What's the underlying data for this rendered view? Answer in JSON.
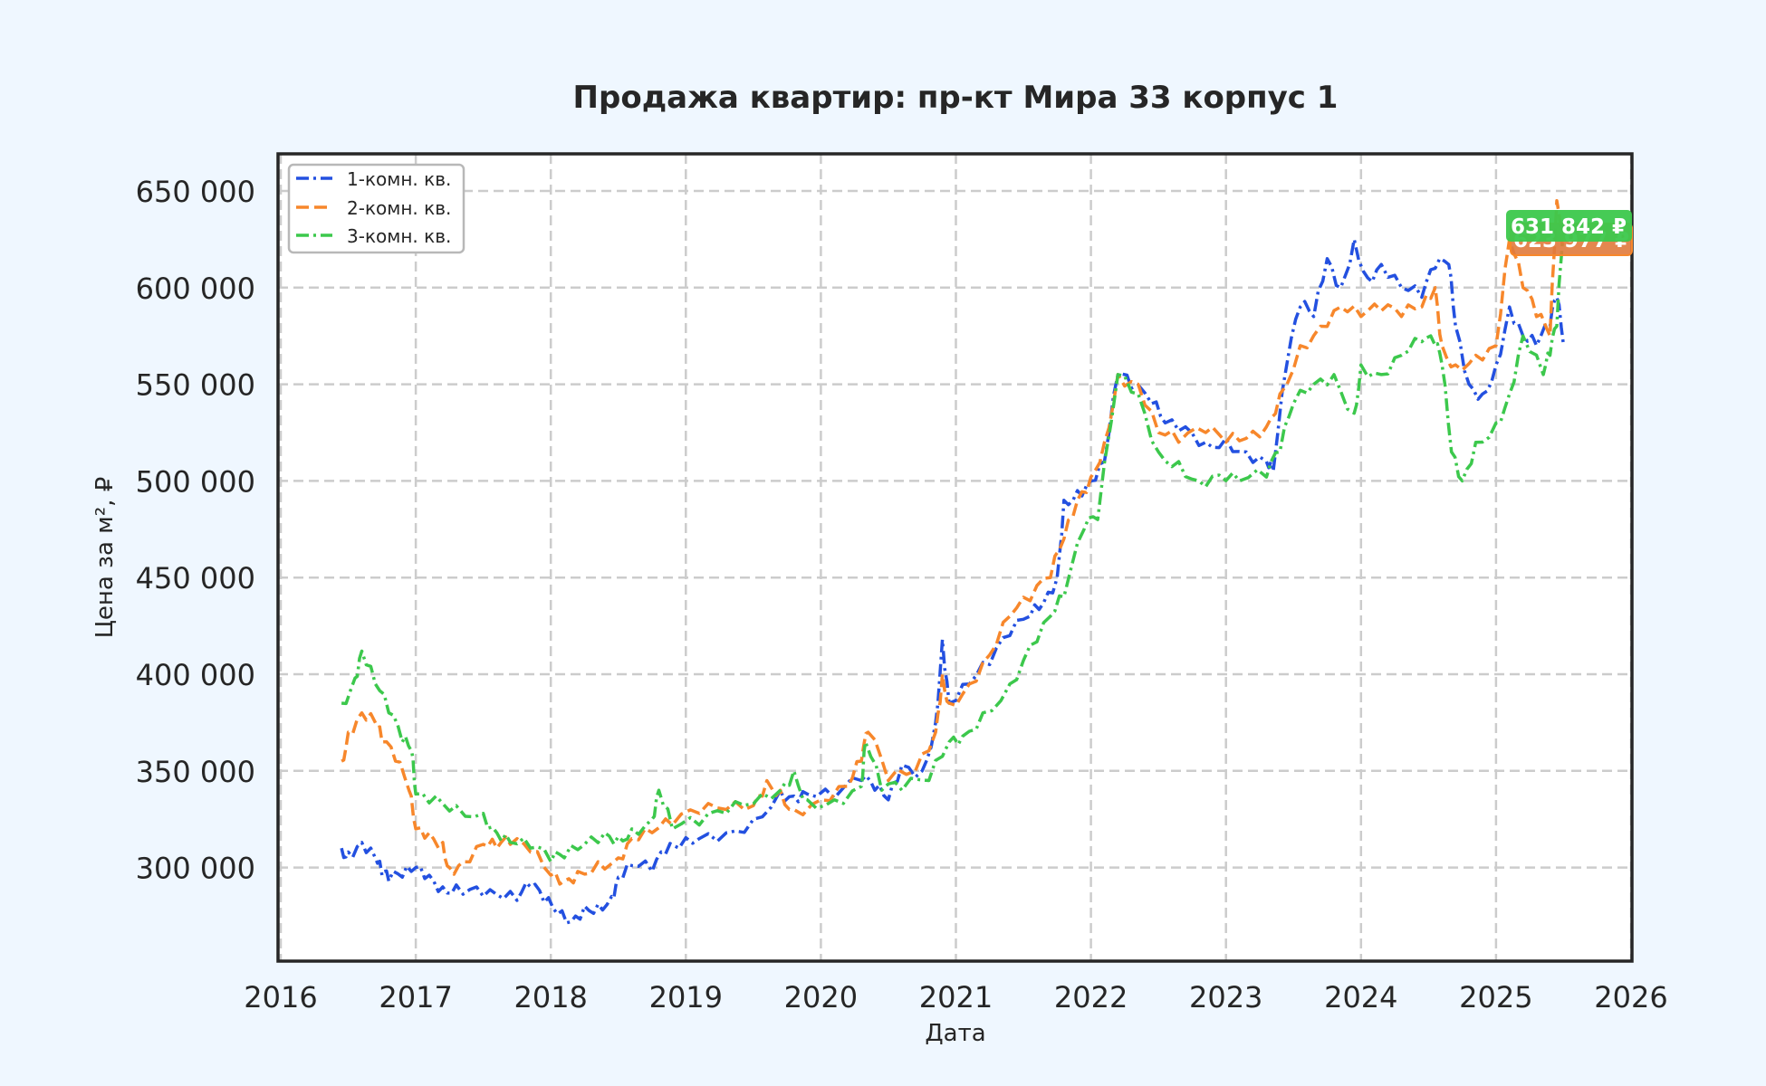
{
  "chart_data": {
    "type": "line",
    "title": "Продажа квартир: пр-кт Мира 33 корпус 1",
    "xlabel": "Дата",
    "ylabel": "Цена за м², ₽",
    "xlim": [
      2016,
      2026
    ],
    "ylim": [
      252000,
      660000
    ],
    "x_ticks": [
      "2016",
      "2017",
      "2018",
      "2019",
      "2020",
      "2021",
      "2022",
      "2023",
      "2024",
      "2025",
      "2026"
    ],
    "y_ticks": [
      {
        "value": 300000,
        "label": "300 000"
      },
      {
        "value": 350000,
        "label": "350 000"
      },
      {
        "value": 400000,
        "label": "400 000"
      },
      {
        "value": 450000,
        "label": "450 000"
      },
      {
        "value": 500000,
        "label": "500 000"
      },
      {
        "value": 550000,
        "label": "550 000"
      },
      {
        "value": 600000,
        "label": "600 000"
      },
      {
        "value": 650000,
        "label": "650 000"
      }
    ],
    "grid": true,
    "legend_position": "upper left",
    "series": [
      {
        "name": "1-комн. кв.",
        "color": "#2350e0",
        "dash": "14 5 3 5",
        "x": [
          2016.45,
          2016.5,
          2016.6,
          2016.7,
          2016.75,
          2016.8,
          2016.9,
          2017.0,
          2017.1,
          2017.2,
          2017.3,
          2017.45,
          2017.6,
          2017.75,
          2017.85,
          2017.95,
          2018.05,
          2018.15,
          2018.25,
          2018.35,
          2018.45,
          2018.5,
          2018.6,
          2018.75,
          2018.85,
          2018.95,
          2019.1,
          2019.3,
          2019.5,
          2019.7,
          2019.8,
          2019.9,
          2020.1,
          2020.3,
          2020.4,
          2020.5,
          2020.6,
          2020.75,
          2020.85,
          2020.9,
          2020.95,
          2021.1,
          2021.25,
          2021.4,
          2021.55,
          2021.65,
          2021.75,
          2021.8,
          2021.9,
          2022.0,
          2022.1,
          2022.2,
          2022.3,
          2022.45,
          2022.55,
          2022.7,
          2022.85,
          2023.0,
          2023.15,
          2023.3,
          2023.35,
          2023.45,
          2023.55,
          2023.65,
          2023.75,
          2023.85,
          2023.95,
          2024.05,
          2024.15,
          2024.3,
          2024.45,
          2024.55,
          2024.65,
          2024.7,
          2024.8,
          2024.9,
          2025.0,
          2025.1,
          2025.2,
          2025.3,
          2025.4,
          2025.45,
          2025.5
        ],
        "values": [
          310000,
          308000,
          313000,
          305000,
          296000,
          293000,
          295000,
          300000,
          296000,
          290000,
          291000,
          290000,
          286000,
          283000,
          290000,
          282000,
          276000,
          272000,
          280000,
          281000,
          285000,
          295000,
          301000,
          298000,
          307000,
          310000,
          315000,
          318000,
          325000,
          340000,
          337000,
          338000,
          336000,
          345000,
          340000,
          335000,
          353000,
          350000,
          375000,
          418000,
          385000,
          395000,
          405000,
          420000,
          430000,
          437000,
          450000,
          490000,
          495000,
          500000,
          510000,
          555000,
          548000,
          540000,
          530000,
          528000,
          520000,
          522000,
          515000,
          510000,
          505000,
          560000,
          590000,
          585000,
          615000,
          600000,
          625000,
          605000,
          612000,
          600000,
          595000,
          610000,
          612000,
          580000,
          550000,
          545000,
          560000,
          590000,
          575000,
          570000,
          580000,
          595000,
          570000
        ]
      },
      {
        "name": "2-комн. кв.",
        "color": "#f7872b",
        "dash": "14 6",
        "x": [
          2016.45,
          2016.5,
          2016.6,
          2016.7,
          2016.75,
          2016.85,
          2016.95,
          2017.0,
          2017.1,
          2017.2,
          2017.25,
          2017.35,
          2017.5,
          2017.6,
          2017.7,
          2017.85,
          2018.0,
          2018.1,
          2018.2,
          2018.35,
          2018.5,
          2018.6,
          2018.75,
          2018.9,
          2019.1,
          2019.3,
          2019.5,
          2019.6,
          2019.7,
          2019.8,
          2020.0,
          2020.2,
          2020.3,
          2020.35,
          2020.5,
          2020.7,
          2020.85,
          2020.9,
          2020.95,
          2021.1,
          2021.25,
          2021.4,
          2021.55,
          2021.7,
          2021.8,
          2021.9,
          2022.0,
          2022.1,
          2022.2,
          2022.35,
          2022.5,
          2022.65,
          2022.85,
          2023.0,
          2023.15,
          2023.3,
          2023.4,
          2023.55,
          2023.7,
          2023.85,
          2024.0,
          2024.15,
          2024.3,
          2024.45,
          2024.55,
          2024.6,
          2024.7,
          2024.85,
          2025.0,
          2025.1,
          2025.2,
          2025.3,
          2025.4,
          2025.45,
          2025.5
        ],
        "values": [
          355000,
          370000,
          380000,
          375000,
          365000,
          355000,
          340000,
          320000,
          318000,
          313000,
          300000,
          303000,
          312000,
          310000,
          312000,
          308000,
          296000,
          293000,
          298000,
          303000,
          305000,
          315000,
          318000,
          322000,
          328000,
          330000,
          332000,
          345000,
          340000,
          330000,
          335000,
          342000,
          355000,
          370000,
          345000,
          350000,
          370000,
          400000,
          385000,
          395000,
          410000,
          430000,
          438000,
          450000,
          470000,
          490000,
          502000,
          520000,
          555000,
          550000,
          525000,
          520000,
          525000,
          520000,
          522000,
          528000,
          545000,
          570000,
          580000,
          590000,
          585000,
          588000,
          585000,
          590000,
          600000,
          570000,
          560000,
          565000,
          570000,
          625000,
          600000,
          585000,
          575000,
          645000,
          620000
        ]
      },
      {
        "name": "3-комн. кв.",
        "color": "#3cc84c",
        "dash": "14 5 3 5",
        "x": [
          2016.45,
          2016.55,
          2016.6,
          2016.7,
          2016.8,
          2016.9,
          2016.97,
          2017.0,
          2017.15,
          2017.3,
          2017.5,
          2017.6,
          2017.7,
          2017.85,
          2018.0,
          2018.1,
          2018.25,
          2018.4,
          2018.5,
          2018.6,
          2018.75,
          2018.8,
          2018.9,
          2019.1,
          2019.3,
          2019.5,
          2019.7,
          2019.8,
          2019.9,
          2020.1,
          2020.3,
          2020.33,
          2020.45,
          2020.6,
          2020.8,
          2020.95,
          2021.05,
          2021.2,
          2021.4,
          2021.55,
          2021.7,
          2021.8,
          2021.95,
          2022.05,
          2022.2,
          2022.35,
          2022.5,
          2022.65,
          2022.8,
          2022.95,
          2023.1,
          2023.3,
          2023.4,
          2023.5,
          2023.65,
          2023.8,
          2023.95,
          2024.0,
          2024.15,
          2024.3,
          2024.45,
          2024.55,
          2024.6,
          2024.67,
          2024.75,
          2024.85,
          2025.0,
          2025.1,
          2025.2,
          2025.35,
          2025.4,
          2025.45,
          2025.5
        ],
        "values": [
          385000,
          398000,
          412000,
          395000,
          380000,
          365000,
          360000,
          338000,
          337000,
          332000,
          328000,
          318000,
          313000,
          310000,
          303000,
          305000,
          312000,
          318000,
          316000,
          320000,
          325000,
          340000,
          320000,
          322000,
          328000,
          333000,
          340000,
          350000,
          335000,
          335000,
          342000,
          365000,
          340000,
          340000,
          345000,
          365000,
          368000,
          380000,
          395000,
          415000,
          430000,
          440000,
          475000,
          480000,
          555000,
          545000,
          515000,
          510000,
          500000,
          503000,
          500000,
          502000,
          515000,
          540000,
          550000,
          555000,
          535000,
          560000,
          555000,
          565000,
          572000,
          570000,
          560000,
          515000,
          500000,
          520000,
          530000,
          545000,
          575000,
          555000,
          565000,
          580000,
          631842
        ]
      }
    ],
    "annotations": [
      {
        "text": "631 842 ₽",
        "series": "3-комн. кв.",
        "bg": "#3cc84c"
      },
      {
        "text": "623 977 ₽",
        "series": "2-комн. кв.",
        "bg": "#e07a3c"
      }
    ]
  }
}
